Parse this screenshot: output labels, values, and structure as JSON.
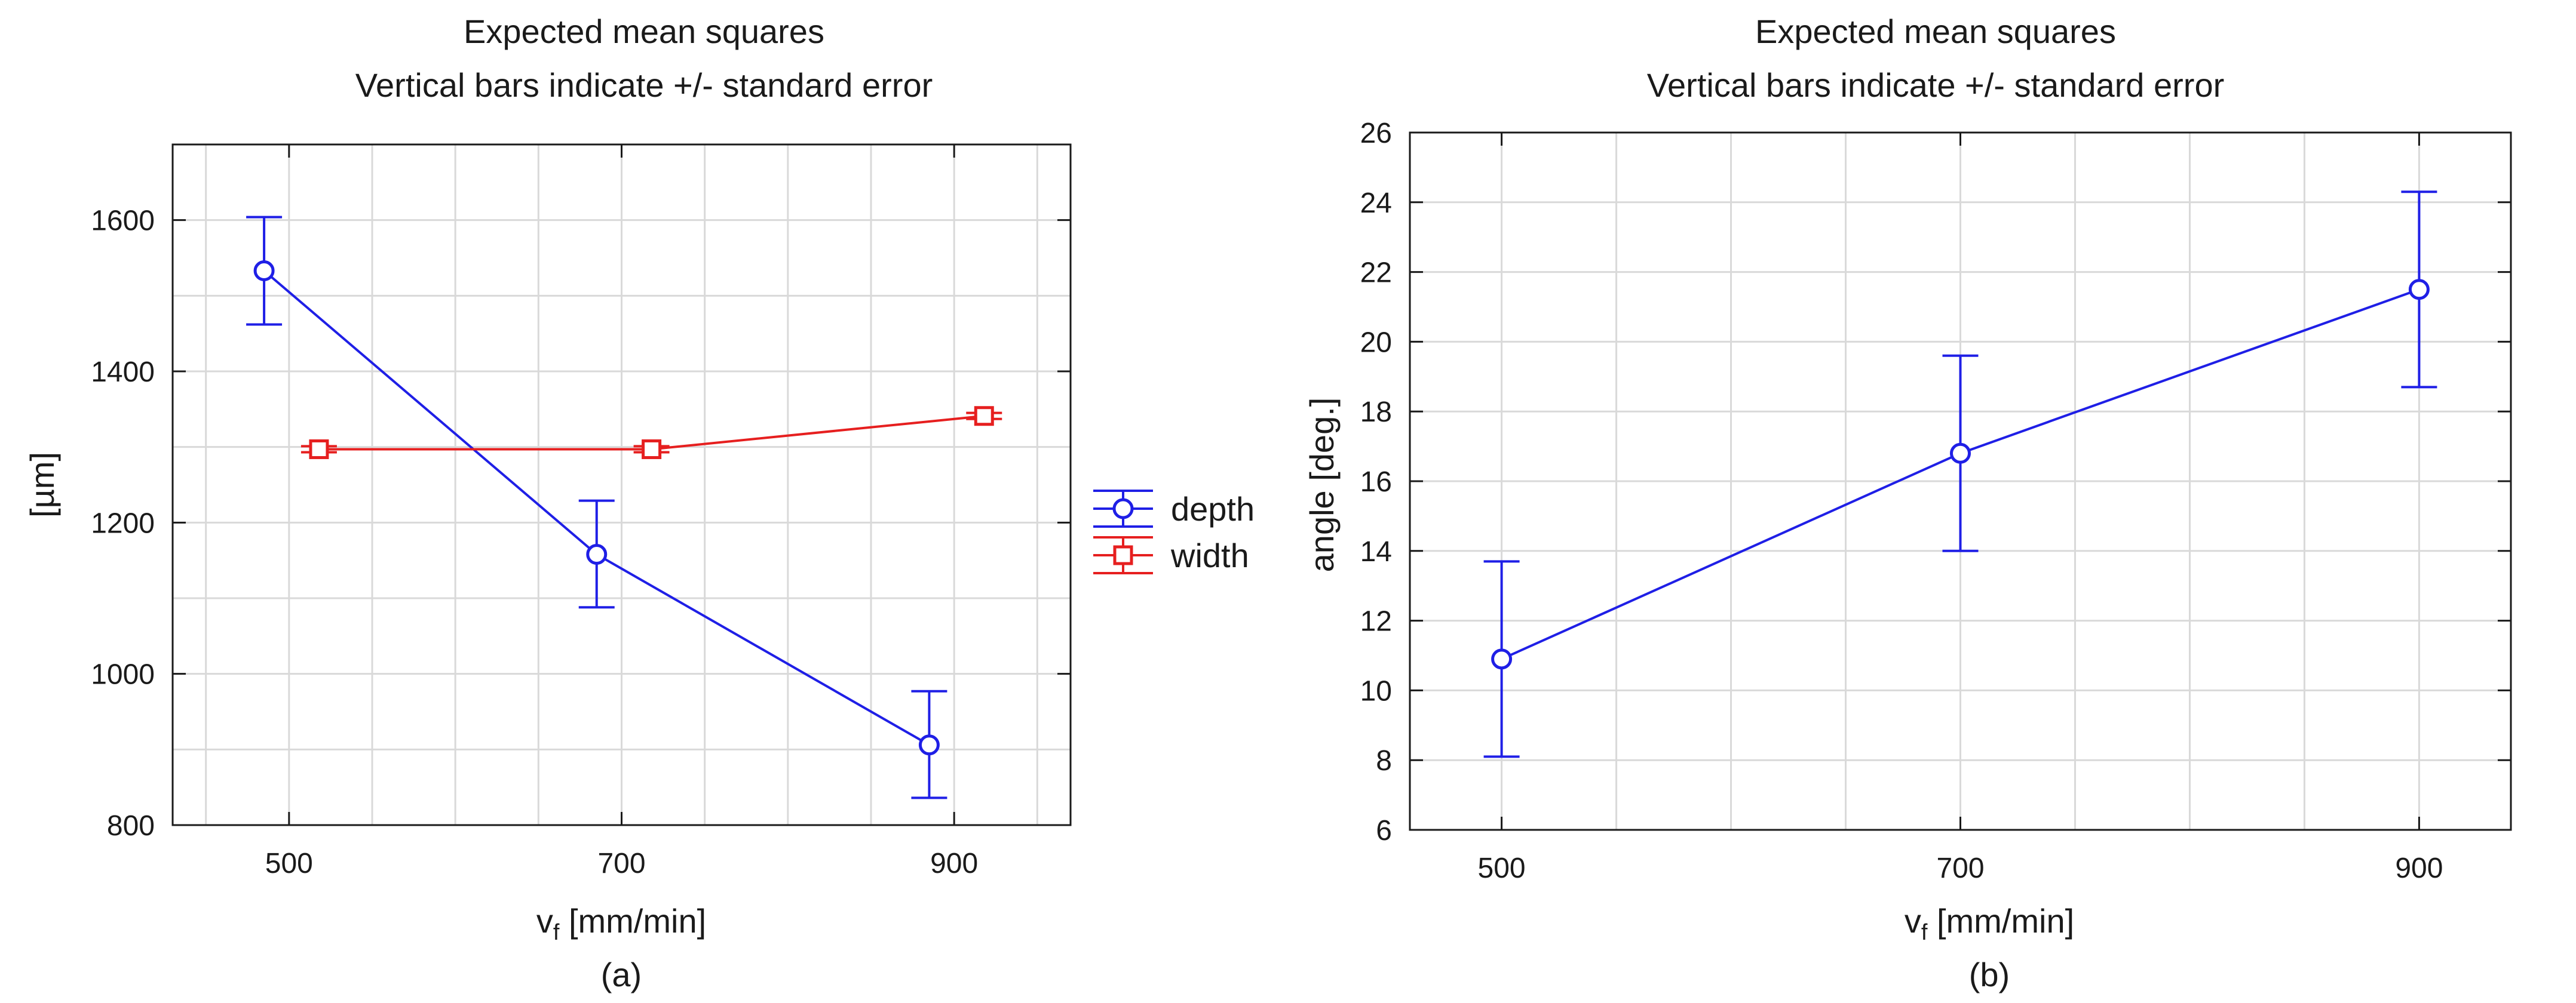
{
  "chart_data": [
    {
      "type": "line",
      "panel_label": "(a)",
      "title": "Expected mean squares",
      "subtitle": "Vertical bars indicate +/- standard error",
      "xlabel": "v",
      "xlabel_sub": "f",
      "xlabel_unit": " [mm/min]",
      "ylabel": "[µm]",
      "xlim": [
        430,
        970
      ],
      "ylim": [
        800,
        1700
      ],
      "xticks": [
        500,
        700,
        900
      ],
      "yticks": [
        800,
        1000,
        1200,
        1400,
        1600
      ],
      "grid": true,
      "legend_position": "right-outside",
      "series": [
        {
          "name": "depth",
          "color": "#1f1fe6",
          "marker": "circle",
          "x": [
            485,
            685,
            885
          ],
          "y": [
            1533,
            1158,
            906
          ],
          "err_low": [
            1462,
            1088,
            836
          ],
          "err_high": [
            1604,
            1229,
            977
          ]
        },
        {
          "name": "width",
          "color": "#e61f1f",
          "marker": "square",
          "x": [
            518,
            718,
            918
          ],
          "y": [
            1297,
            1297,
            1341
          ],
          "err_low": [
            1293,
            1293,
            1337
          ],
          "err_high": [
            1301,
            1301,
            1345
          ]
        }
      ]
    },
    {
      "type": "line",
      "panel_label": "(b)",
      "title": "Expected mean squares",
      "subtitle": "Vertical bars indicate +/- standard error",
      "xlabel": "v",
      "xlabel_sub": "f",
      "xlabel_unit": " [mm/min]",
      "ylabel": "angle [deg.]",
      "xlim": [
        460,
        940
      ],
      "ylim": [
        6,
        26
      ],
      "xticks": [
        500,
        700,
        900
      ],
      "yticks": [
        6,
        8,
        10,
        12,
        14,
        16,
        18,
        20,
        22,
        24,
        26
      ],
      "grid": true,
      "legend_position": "none",
      "series": [
        {
          "name": "",
          "color": "#1f1fe6",
          "marker": "circle",
          "x": [
            500,
            700,
            900
          ],
          "y": [
            10.9,
            16.8,
            21.5
          ],
          "err_low": [
            8.1,
            14.0,
            18.7
          ],
          "err_high": [
            13.7,
            19.6,
            24.3
          ]
        }
      ]
    }
  ]
}
